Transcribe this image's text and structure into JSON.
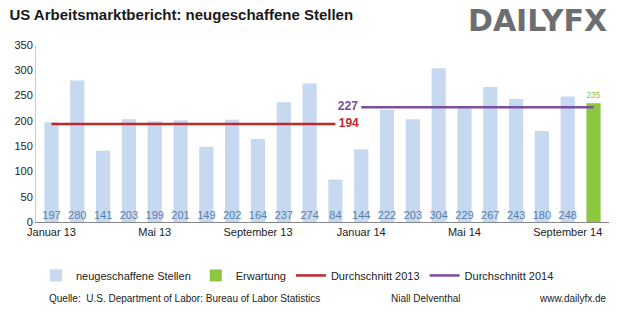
{
  "chart_data": {
    "type": "bar",
    "title": "US Arbeitsmarktbericht: neugeschaffene Stellen",
    "logo": "DAILYFX",
    "categories": [
      "Januar 13",
      null,
      null,
      null,
      "Mai 13",
      null,
      null,
      null,
      "September 13",
      null,
      null,
      null,
      "Januar 14",
      null,
      null,
      null,
      "Mai 14",
      null,
      null,
      null,
      "September 14",
      null
    ],
    "series": [
      {
        "name": "neugeschaffene Stellen",
        "type": "bar",
        "color": "#c6d9f1",
        "data_labels": true,
        "values": [
          197,
          280,
          141,
          203,
          199,
          201,
          149,
          202,
          164,
          237,
          274,
          84,
          144,
          222,
          203,
          304,
          229,
          267,
          243,
          180,
          248,
          null
        ]
      },
      {
        "name": "Erwartung",
        "type": "bar",
        "color": "#8dc63f",
        "data_labels": true,
        "values": [
          null,
          null,
          null,
          null,
          null,
          null,
          null,
          null,
          null,
          null,
          null,
          null,
          null,
          null,
          null,
          null,
          null,
          null,
          null,
          null,
          null,
          235
        ]
      },
      {
        "name": "Durchschnitt 2013",
        "type": "line",
        "color": "#c0282d",
        "data_labels": true,
        "values": [
          194,
          194,
          194,
          194,
          194,
          194,
          194,
          194,
          194,
          194,
          194,
          194,
          null,
          null,
          null,
          null,
          null,
          null,
          null,
          null,
          null,
          null
        ]
      },
      {
        "name": "Durchschnitt 2014",
        "type": "line",
        "color": "#7a4f9e",
        "data_labels": true,
        "values": [
          null,
          null,
          null,
          null,
          null,
          null,
          null,
          null,
          null,
          null,
          null,
          null,
          227,
          227,
          227,
          227,
          227,
          227,
          227,
          227,
          227,
          227
        ]
      }
    ],
    "ylim": [
      0,
      350
    ],
    "yticks": [
      0,
      50,
      100,
      150,
      200,
      250,
      300,
      350
    ],
    "grid": false,
    "legend": "bottom",
    "source": "Quelle:  U.S. Department of Labor: Bureau of Labor Statistics",
    "author": "Niall Delventhal",
    "website": "www.dailyfx.de"
  }
}
